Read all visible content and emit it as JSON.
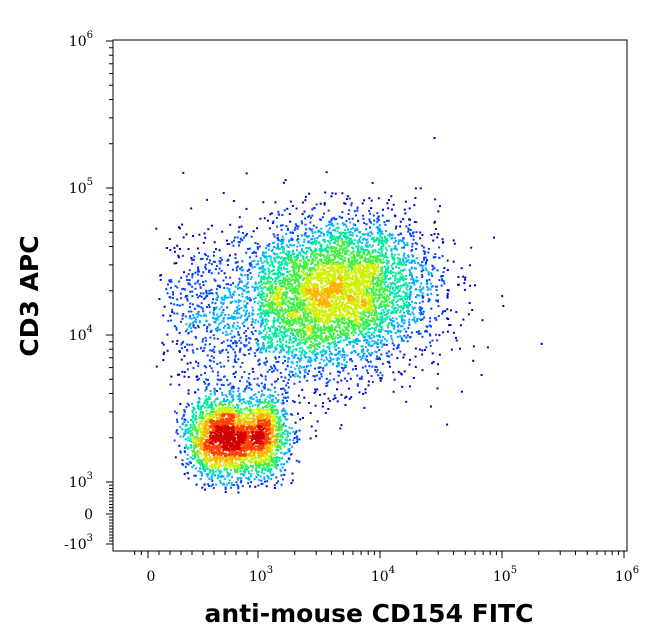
{
  "chart_data": {
    "type": "scatter",
    "style": "density-colored flow cytometry dot plot (biexponential axes)",
    "xlabel": "anti-mouse CD154 FITC",
    "ylabel": "CD3 APC",
    "x_scale": "biexponential",
    "y_scale": "biexponential",
    "xlim": [
      -300,
      1000000
    ],
    "ylim": [
      -1000,
      1000000
    ],
    "x_ticks": [
      {
        "base": "0",
        "exp": "",
        "value": 0
      },
      {
        "base": "10",
        "exp": "3",
        "value": 1000
      },
      {
        "base": "10",
        "exp": "4",
        "value": 10000
      },
      {
        "base": "10",
        "exp": "5",
        "value": 100000
      },
      {
        "base": "10",
        "exp": "6",
        "value": 1000000
      }
    ],
    "y_ticks": [
      {
        "base": "-10",
        "exp": "3",
        "value": -1000
      },
      {
        "base": "0",
        "exp": "",
        "value": 0
      },
      {
        "base": "10",
        "exp": "3",
        "value": 1000
      },
      {
        "base": "10",
        "exp": "4",
        "value": 10000
      },
      {
        "base": "10",
        "exp": "5",
        "value": 100000
      },
      {
        "base": "10",
        "exp": "6",
        "value": 1000000
      }
    ],
    "populations": [
      {
        "x_center": 800,
        "y_center": 2000,
        "x_spread_decades": 0.16,
        "y_spread_decades": 0.14,
        "fraction": 0.34
      },
      {
        "x_center": 2500,
        "y_center": 15000,
        "x_spread_decades": 0.45,
        "y_spread_decades": 0.26,
        "fraction": 0.42
      },
      {
        "x_center": 6000,
        "y_center": 25000,
        "x_spread_decades": 0.35,
        "y_spread_decades": 0.22,
        "fraction": 0.24
      }
    ],
    "event_count": 9000,
    "colormap": [
      "#0000c8",
      "#0040ff",
      "#00b0ff",
      "#00e8a0",
      "#40f040",
      "#d0f000",
      "#ffb000",
      "#ff4000",
      "#d00000"
    ],
    "grid": false,
    "legend": "none"
  }
}
